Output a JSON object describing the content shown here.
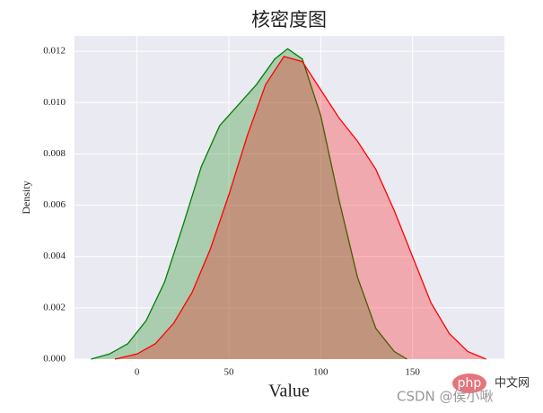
{
  "chart_data": {
    "type": "kde",
    "title": "核密度图",
    "xlabel": "Value",
    "ylabel": "Density",
    "series": [
      {
        "color": "green",
        "x": [
          -25,
          -15,
          -5,
          5,
          15,
          25,
          35,
          45,
          55,
          65,
          75,
          82,
          90,
          100,
          110,
          120,
          130,
          140,
          147
        ],
        "values": [
          0,
          0.0002,
          0.0006,
          0.0015,
          0.003,
          0.0052,
          0.0075,
          0.0091,
          0.0099,
          0.0107,
          0.0117,
          0.0121,
          0.0117,
          0.0095,
          0.0062,
          0.0032,
          0.0012,
          0.0003,
          0
        ]
      },
      {
        "color": "red",
        "x": [
          -12,
          0,
          10,
          20,
          30,
          40,
          50,
          60,
          70,
          80,
          90,
          100,
          110,
          120,
          130,
          140,
          150,
          160,
          170,
          180,
          190
        ],
        "values": [
          0,
          0.0002,
          0.0006,
          0.0014,
          0.0026,
          0.0043,
          0.0064,
          0.0087,
          0.0107,
          0.0118,
          0.0116,
          0.0105,
          0.0094,
          0.0085,
          0.0074,
          0.0058,
          0.004,
          0.0022,
          0.001,
          0.0003,
          0
        ]
      }
    ],
    "xlim": [
      -34,
      200
    ],
    "ylim": [
      0,
      0.0126
    ],
    "xticks": [
      0,
      50,
      100,
      150
    ],
    "yticks": [
      {
        "value": 0,
        "label": "0.000"
      },
      {
        "value": 0.002,
        "label": "0.002"
      },
      {
        "value": 0.004,
        "label": "0.004"
      },
      {
        "value": 0.006,
        "label": "0.006"
      },
      {
        "value": 0.008,
        "label": "0.008"
      },
      {
        "value": 0.01,
        "label": "0.010"
      },
      {
        "value": 0.012,
        "label": "0.012"
      }
    ],
    "grid": true,
    "watermark_logo": "php",
    "watermark_logo_text": "中文网",
    "watermark": "CSDN @侯小啾"
  }
}
